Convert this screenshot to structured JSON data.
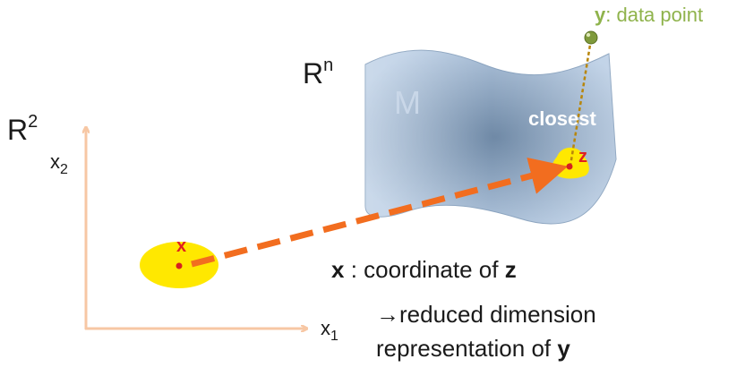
{
  "latent_space": {
    "name": "R",
    "exponent": "2",
    "x1_axis": {
      "letter": "x",
      "index": "1"
    },
    "x2_axis": {
      "letter": "x",
      "index": "2"
    },
    "point_label": "x",
    "axis_color": "#f7c7a4",
    "blob_color": "#ffe800"
  },
  "ambient_space": {
    "name": "R",
    "exponent": "n"
  },
  "manifold": {
    "label": "M",
    "closest_label": "closest",
    "projection_label": "z",
    "fill_edge": "#b9cde4",
    "fill_center": "#6f89a6",
    "label_color": "#c9d7e8"
  },
  "data_point": {
    "symbol": "y",
    "text": ": data point",
    "color": "#8fb34c"
  },
  "mapping_arrow": {
    "color": "#f26d1f"
  },
  "annotation": {
    "line1_symbol": "x",
    "line1_text": " : coordinate of ",
    "line1_target": "z",
    "line2_arrow": "→",
    "line2_text": "reduced dimension",
    "line3_text": "representation of ",
    "line3_target": "y"
  },
  "point_marker_color": "#d62020"
}
